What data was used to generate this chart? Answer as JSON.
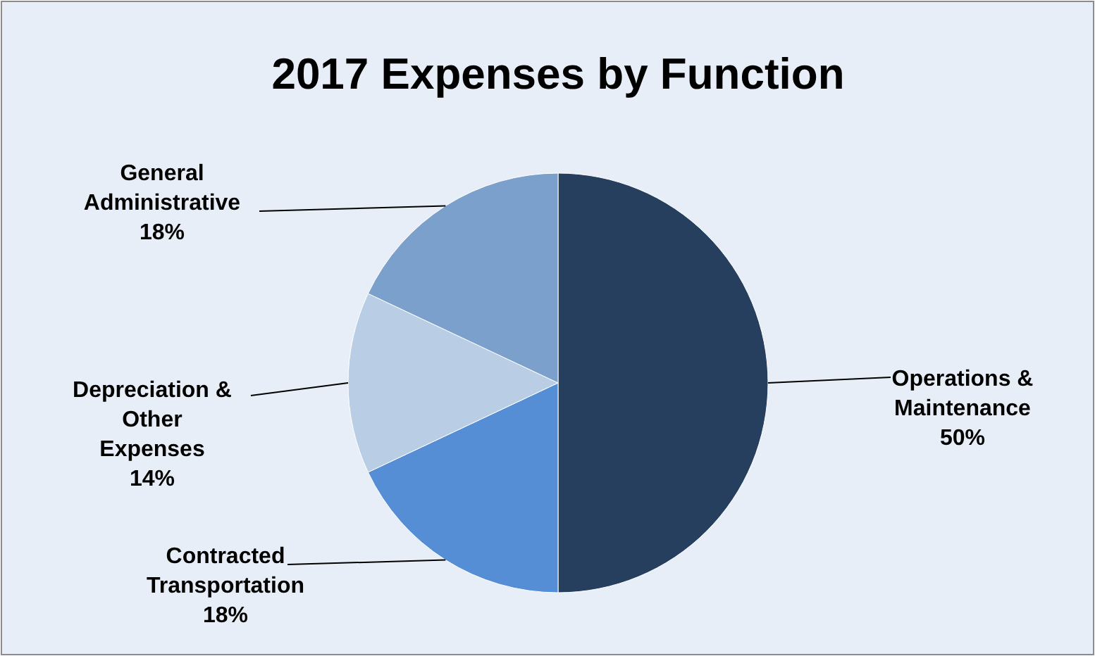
{
  "chart_data": {
    "type": "pie",
    "title": "2017 Expenses by Function",
    "categories": [
      "Operations & Maintenance",
      "Contracted Transportation",
      "Depreciation & Other Expenses",
      "General Administrative"
    ],
    "values": [
      50,
      18,
      14,
      18
    ],
    "value_labels": [
      "50%",
      "18%",
      "14%",
      "18%"
    ],
    "colors": [
      "#263f5f",
      "#558ed5",
      "#b9cde5",
      "#7aa0cb"
    ]
  }
}
